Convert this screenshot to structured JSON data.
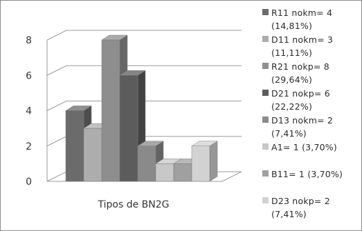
{
  "chart_data": {
    "type": "bar",
    "variant": "3d-clustered-column",
    "xlabel": "Tipos de BN2G",
    "ylabel": "",
    "ylim": [
      0,
      8
    ],
    "yticks": [
      "0",
      "2",
      "4",
      "6",
      "8"
    ],
    "grid": true,
    "legend_position": "right",
    "series": [
      {
        "name": "R11 nokm= 4 (14,81%)",
        "value": 4,
        "color": "#6b6b6b"
      },
      {
        "name": "D11 nokm= 3 (11,11%)",
        "value": 3,
        "color": "#adadad"
      },
      {
        "name": "R21 nokp= 8 (29,64%)",
        "value": 8,
        "color": "#8e8e8e"
      },
      {
        "name": "D21 nokp= 6 (22,22%)",
        "value": 6,
        "color": "#5c5c5c"
      },
      {
        "name": "D13 nokm= 2 (7,41%)",
        "value": 2,
        "color": "#8a8a8a"
      },
      {
        "name": "A1= 1 (3,70%)",
        "value": 1,
        "color": "#c8c8c8"
      },
      {
        "name": "B11= 1 (3,70%)",
        "value": 1,
        "color": "#a0a0a0"
      },
      {
        "name": "D23 nokp= 2 (7,41%)",
        "value": 2,
        "color": "#d2d2d2"
      }
    ]
  }
}
